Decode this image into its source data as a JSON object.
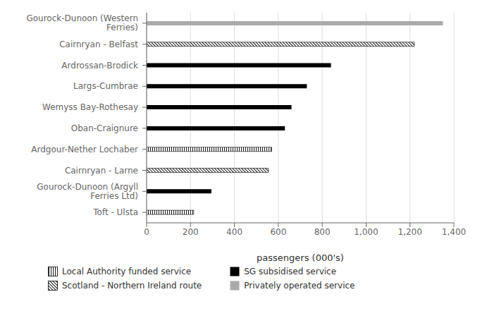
{
  "chart_data": {
    "type": "bar",
    "orientation": "horizontal",
    "categories": [
      "Gourock-Dunoon (Western\nFerries)",
      "Cairnryan - Belfast",
      "Ardrossan-Brodick",
      "Largs-Cumbrae",
      "Wemyss Bay-Rothesay",
      "Oban-Craignure",
      "Ardgour-Nether Lochaber",
      "Cairnryan - Larne",
      "Gourock-Dunoon (Argyll\nFerries Ltd)",
      "Toft - Ulsta"
    ],
    "series": [
      {
        "name": "Local Authority funded service",
        "color": "#000000",
        "line_style": "vertical",
        "values": [
          null,
          null,
          null,
          null,
          null,
          null,
          570,
          null,
          null,
          215
        ]
      },
      {
        "name": "SG subsidised service",
        "color": "#000000",
        "values": [
          null,
          null,
          840,
          730,
          660,
          630,
          null,
          null,
          295,
          null
        ]
      },
      {
        "name": "Scotland - Northern Ireland route",
        "color": "#000000",
        "line_style": "diagonal",
        "values": [
          null,
          1220,
          null,
          null,
          null,
          null,
          null,
          555,
          null,
          null
        ]
      },
      {
        "name": "Privately operated service",
        "color": "#aaaaaa",
        "values": [
          1350,
          null,
          null,
          null,
          null,
          null,
          null,
          null,
          null,
          null
        ]
      }
    ],
    "xlabel": "passengers (000's)",
    "xlim": [
      0,
      1400
    ],
    "xticks": [
      0,
      200,
      400,
      600,
      800,
      {
        "value": 1000,
        "label": "1,000"
      },
      {
        "value": 1200,
        "label": "1,200"
      },
      {
        "value": 1400,
        "label": "1,400"
      }
    ],
    "grid": true,
    "legend": "bottom"
  }
}
